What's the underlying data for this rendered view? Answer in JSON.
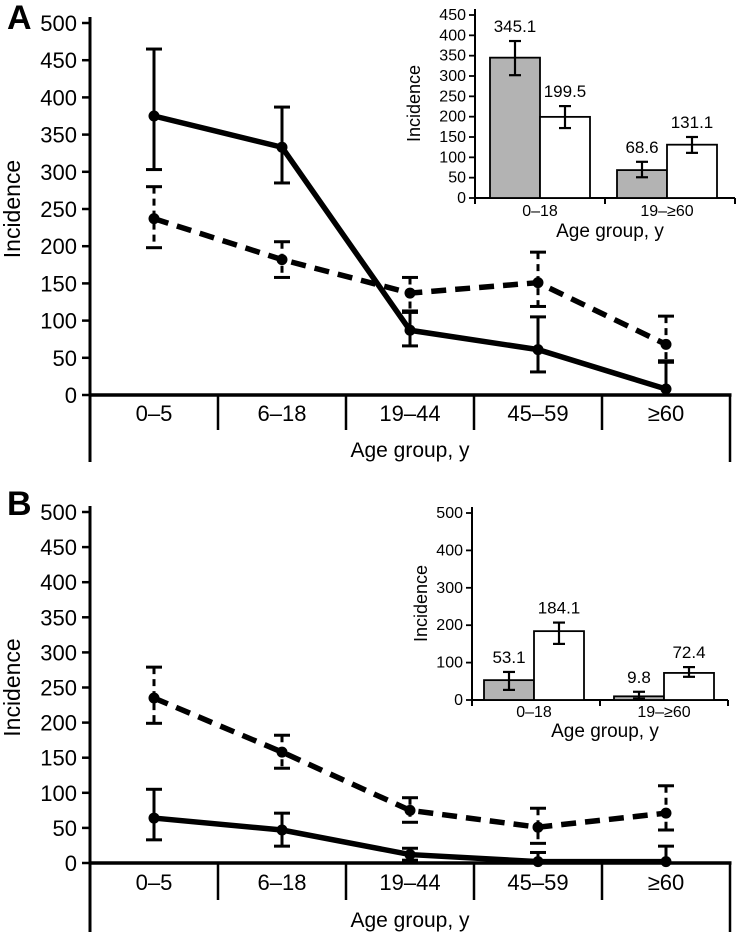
{
  "figure": {
    "background": "#ffffff",
    "ink_color": "#000000",
    "gray_bar_fill": "#b3b3b3",
    "white_bar_fill": "#ffffff"
  },
  "chart_data": [
    {
      "id": "panel-a-main",
      "panel_label": "A",
      "type": "line",
      "title": "",
      "xlabel": "Age group, y",
      "ylabel": "Incidence",
      "categories": [
        "0–5",
        "6–18",
        "19–44",
        "45–59",
        "≥60"
      ],
      "ylim": [
        0,
        500
      ],
      "ytick_step": 50,
      "grid": false,
      "legend": "none",
      "error_bars": true,
      "series": [
        {
          "name": "solid line",
          "line_style": "solid",
          "marker": "circle",
          "color": "#000000",
          "values": [
            375,
            333,
            87,
            61,
            8
          ],
          "err_low": [
            303,
            285,
            66,
            31,
            0
          ],
          "err_high": [
            465,
            387,
            111,
            105,
            46
          ]
        },
        {
          "name": "dashed line",
          "line_style": "dashed",
          "marker": "circle",
          "color": "#000000",
          "values": [
            237,
            182,
            137,
            151,
            68
          ],
          "err_low": [
            198,
            158,
            113,
            119,
            44
          ],
          "err_high": [
            280,
            206,
            158,
            192,
            106
          ]
        }
      ]
    },
    {
      "id": "panel-a-inset",
      "type": "bar",
      "title": "",
      "xlabel": "Age group, y",
      "ylabel": "Incidence",
      "categories": [
        "0–18",
        "19–≥60"
      ],
      "ylim": [
        0,
        450
      ],
      "ytick_step": 50,
      "grid": false,
      "legend": "none",
      "error_bars": true,
      "series": [
        {
          "name": "gray bars",
          "fill": "#b3b3b3",
          "values": [
            345.1,
            68.6
          ],
          "labels": [
            "345.1",
            "68.6"
          ],
          "err_low": [
            302,
            51
          ],
          "err_high": [
            386,
            89
          ]
        },
        {
          "name": "white bars",
          "fill": "#ffffff",
          "values": [
            199.5,
            131.1
          ],
          "labels": [
            "199.5",
            "131.1"
          ],
          "err_low": [
            172,
            111
          ],
          "err_high": [
            226,
            150
          ]
        }
      ]
    },
    {
      "id": "panel-b-main",
      "panel_label": "B",
      "type": "line",
      "title": "",
      "xlabel": "Age group, y",
      "ylabel": "Incidence",
      "categories": [
        "0–5",
        "6–18",
        "19–44",
        "45–59",
        "≥60"
      ],
      "ylim": [
        0,
        500
      ],
      "ytick_step": 50,
      "grid": false,
      "legend": "none",
      "error_bars": true,
      "series": [
        {
          "name": "solid line",
          "line_style": "solid",
          "marker": "circle",
          "color": "#000000",
          "values": [
            64,
            47,
            12,
            2,
            2
          ],
          "err_low": [
            33,
            24,
            4,
            0,
            0
          ],
          "err_high": [
            105,
            71,
            21,
            15,
            24
          ]
        },
        {
          "name": "dashed line",
          "line_style": "dashed",
          "marker": "circle",
          "color": "#000000",
          "values": [
            235,
            158,
            75,
            51,
            71
          ],
          "err_low": [
            199,
            135,
            58,
            28,
            47
          ],
          "err_high": [
            279,
            182,
            93,
            78,
            110
          ]
        }
      ]
    },
    {
      "id": "panel-b-inset",
      "type": "bar",
      "title": "",
      "xlabel": "Age group, y",
      "ylabel": "Incidence",
      "categories": [
        "0–18",
        "19–≥60"
      ],
      "ylim": [
        0,
        500
      ],
      "ytick_step": 100,
      "grid": false,
      "legend": "none",
      "error_bars": true,
      "series": [
        {
          "name": "gray bars",
          "fill": "#b3b3b3",
          "values": [
            53.1,
            9.8
          ],
          "labels": [
            "53.1",
            "9.8"
          ],
          "err_low": [
            27,
            4
          ],
          "err_high": [
            75,
            22
          ]
        },
        {
          "name": "white bars",
          "fill": "#ffffff",
          "values": [
            184.1,
            72.4
          ],
          "labels": [
            "184.1",
            "72.4"
          ],
          "err_low": [
            150,
            62
          ],
          "err_high": [
            207,
            88
          ]
        }
      ]
    }
  ]
}
